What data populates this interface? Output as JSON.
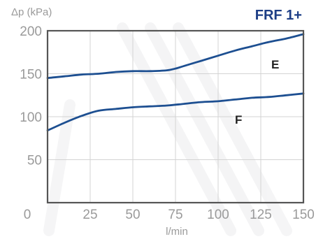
{
  "chart_data": {
    "type": "line",
    "title": "FRF 1+",
    "ylabel": "Δp (kPa)",
    "xlabel": "l/min",
    "xlim": [
      0,
      150
    ],
    "ylim": [
      0,
      200
    ],
    "x_ticks": [
      0,
      25,
      50,
      75,
      100,
      125,
      150
    ],
    "y_ticks": [
      50,
      100,
      150,
      200
    ],
    "grid": true,
    "series": [
      {
        "name": "E",
        "color": "#1d4f91",
        "x": [
          0,
          10,
          20,
          30,
          40,
          50,
          60,
          70,
          75,
          80,
          90,
          100,
          110,
          120,
          130,
          140,
          150
        ],
        "y": [
          145,
          147,
          149,
          150,
          152,
          153,
          153,
          154,
          156,
          159,
          165,
          171,
          177,
          182,
          187,
          191,
          196
        ]
      },
      {
        "name": "F",
        "color": "#1d4f91",
        "x": [
          0,
          10,
          20,
          30,
          40,
          50,
          60,
          70,
          80,
          90,
          100,
          110,
          120,
          130,
          140,
          150
        ],
        "y": [
          84,
          93,
          101,
          107,
          109,
          111,
          112,
          113,
          115,
          117,
          118,
          120,
          122,
          123,
          125,
          127
        ]
      }
    ]
  }
}
